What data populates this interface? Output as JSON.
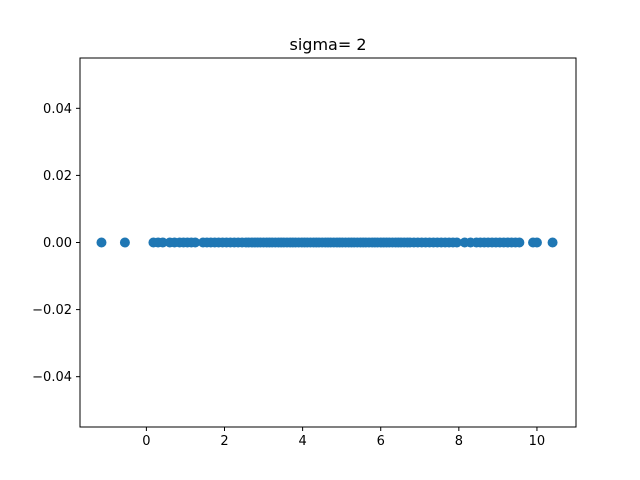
{
  "chart_data": {
    "type": "scatter",
    "title": "sigma= 2",
    "xlabel": "",
    "ylabel": "",
    "xlim": [
      -1.7,
      11.0
    ],
    "ylim": [
      -0.055,
      0.055
    ],
    "xticks": [
      0,
      2,
      4,
      6,
      8,
      10
    ],
    "xtick_labels": [
      "0",
      "2",
      "4",
      "6",
      "8",
      "10"
    ],
    "yticks": [
      -0.04,
      -0.02,
      0.0,
      0.02,
      0.04
    ],
    "ytick_labels": [
      "−0.04",
      "−0.02",
      "0.00",
      "0.02",
      "0.04"
    ],
    "grid": false,
    "marker_color": "#1f77b4",
    "series": [
      {
        "x": [
          -1.15,
          -0.55,
          0.18,
          0.3,
          0.42,
          0.6,
          0.72,
          0.85,
          0.95,
          1.05,
          1.15,
          1.25,
          1.45,
          1.55,
          1.65,
          1.75,
          1.85,
          1.95,
          2.05,
          2.15,
          2.25,
          2.35,
          2.45,
          2.55,
          2.62,
          2.7,
          2.78,
          2.85,
          2.92,
          3.0,
          3.08,
          3.15,
          3.22,
          3.3,
          3.38,
          3.45,
          3.52,
          3.6,
          3.68,
          3.75,
          3.82,
          3.9,
          3.98,
          4.05,
          4.12,
          4.2,
          4.28,
          4.35,
          4.42,
          4.5,
          4.58,
          4.65,
          4.72,
          4.8,
          4.88,
          4.95,
          5.02,
          5.1,
          5.18,
          5.25,
          5.32,
          5.4,
          5.48,
          5.55,
          5.62,
          5.7,
          5.78,
          5.85,
          5.92,
          6.0,
          6.08,
          6.15,
          6.22,
          6.3,
          6.38,
          6.45,
          6.52,
          6.6,
          6.68,
          6.75,
          6.85,
          6.95,
          7.05,
          7.15,
          7.25,
          7.35,
          7.45,
          7.55,
          7.65,
          7.75,
          7.85,
          7.95,
          8.15,
          8.3,
          8.45,
          8.55,
          8.65,
          8.75,
          8.85,
          8.95,
          9.05,
          9.15,
          9.25,
          9.35,
          9.45,
          9.55,
          9.9,
          10.0,
          10.4
        ],
        "y": [
          0,
          0,
          0,
          0,
          0,
          0,
          0,
          0,
          0,
          0,
          0,
          0,
          0,
          0,
          0,
          0,
          0,
          0,
          0,
          0,
          0,
          0,
          0,
          0,
          0,
          0,
          0,
          0,
          0,
          0,
          0,
          0,
          0,
          0,
          0,
          0,
          0,
          0,
          0,
          0,
          0,
          0,
          0,
          0,
          0,
          0,
          0,
          0,
          0,
          0,
          0,
          0,
          0,
          0,
          0,
          0,
          0,
          0,
          0,
          0,
          0,
          0,
          0,
          0,
          0,
          0,
          0,
          0,
          0,
          0,
          0,
          0,
          0,
          0,
          0,
          0,
          0,
          0,
          0,
          0,
          0,
          0,
          0,
          0,
          0,
          0,
          0,
          0,
          0,
          0,
          0,
          0,
          0,
          0,
          0,
          0,
          0,
          0,
          0,
          0,
          0,
          0,
          0,
          0,
          0,
          0,
          0,
          0,
          0
        ]
      }
    ]
  }
}
